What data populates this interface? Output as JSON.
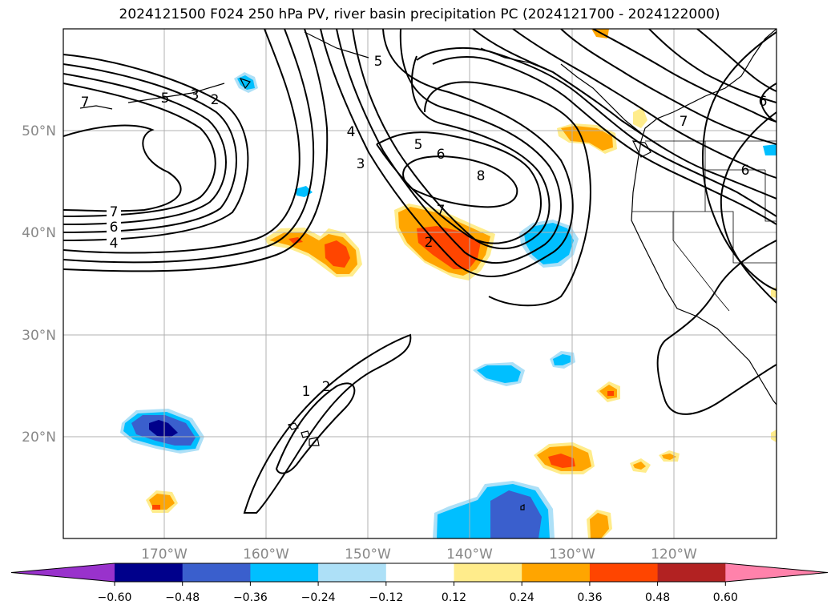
{
  "title": "2024121500 F024 250 hPa PV, river basin precipitation PC (2024121700 - 2024122000)",
  "lat_labels": [
    "50°N",
    "40°N",
    "30°N",
    "20°N"
  ],
  "lon_labels": [
    "170°W",
    "160°W",
    "150°W",
    "140°W",
    "130°W",
    "120°W"
  ],
  "colorbar": {
    "ticks": [
      "−0.60",
      "−0.48",
      "−0.36",
      "−0.24",
      "−0.12",
      "0.12",
      "0.24",
      "0.36",
      "0.48",
      "0.60"
    ],
    "colors": [
      "#9932CC",
      "#00008B",
      "#3A5FCD",
      "#00BFFF",
      "#ADE0F7",
      "#FFFFFF",
      "#FFEC8B",
      "#FFA500",
      "#FF4500",
      "#B22222",
      "#FF82AB"
    ]
  },
  "contour_labels": [
    "7",
    "6",
    "4",
    "5",
    "3",
    "2",
    "1",
    "8"
  ],
  "colors": {
    "land_line": "#000000",
    "grid": "#b0b0b0"
  }
}
